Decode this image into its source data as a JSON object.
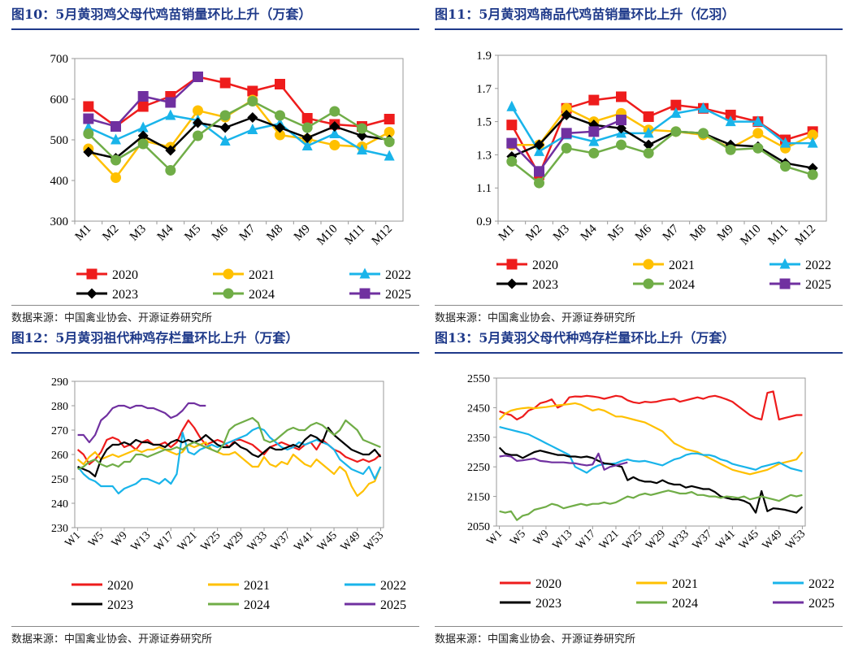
{
  "chart_data": [
    {
      "id": "fig10",
      "type": "line",
      "title": "图10：5月黄羽鸡父母代鸡苗销量环比上升（万套）",
      "source": "数据来源：中国禽业协会、开源证券研究所",
      "categories": [
        "M1",
        "M2",
        "M3",
        "M4",
        "M5",
        "M6",
        "M7",
        "M8",
        "M9",
        "M10",
        "M11",
        "M12"
      ],
      "ylim": [
        300,
        700
      ],
      "yticks": [
        300,
        400,
        500,
        600,
        700
      ],
      "series": [
        {
          "name": "2020",
          "color": "#ee1c1c",
          "marker": "square",
          "values": [
            582,
            533,
            582,
            607,
            655,
            640,
            620,
            637,
            553,
            538,
            533,
            551
          ]
        },
        {
          "name": "2021",
          "color": "#ffc000",
          "marker": "circle",
          "values": [
            478,
            407,
            498,
            482,
            572,
            556,
            598,
            512,
            502,
            487,
            483,
            519
          ]
        },
        {
          "name": "2022",
          "color": "#19b4ea",
          "marker": "triangle",
          "values": [
            530,
            500,
            530,
            560,
            548,
            497,
            525,
            540,
            485,
            515,
            475,
            460
          ]
        },
        {
          "name": "2023",
          "color": "#000000",
          "marker": "diamond",
          "values": [
            470,
            455,
            510,
            474,
            542,
            530,
            555,
            530,
            505,
            533,
            510,
            500
          ]
        },
        {
          "name": "2024",
          "color": "#70ad47",
          "marker": "circle",
          "values": [
            515,
            450,
            490,
            425,
            510,
            560,
            595,
            560,
            530,
            570,
            528,
            495
          ]
        },
        {
          "name": "2025",
          "color": "#7030a0",
          "marker": "square",
          "values": [
            552,
            533,
            607,
            592,
            655,
            null,
            null,
            null,
            null,
            null,
            null,
            null
          ]
        }
      ]
    },
    {
      "id": "fig11",
      "type": "line",
      "title": "图11：5月黄羽鸡商品代鸡苗销量环比上升（亿羽）",
      "source": "数据来源：中国禽业协会、开源证券研究所",
      "categories": [
        "M1",
        "M2",
        "M3",
        "M4",
        "M5",
        "M6",
        "M7",
        "M8",
        "M9",
        "M10",
        "M11",
        "M12"
      ],
      "ylim": [
        0.9,
        1.9
      ],
      "yticks": [
        0.9,
        1.1,
        1.3,
        1.5,
        1.7,
        1.9
      ],
      "series": [
        {
          "name": "2020",
          "color": "#ee1c1c",
          "marker": "square",
          "values": [
            1.48,
            1.18,
            1.58,
            1.63,
            1.65,
            1.53,
            1.6,
            1.58,
            1.54,
            1.5,
            1.39,
            1.44
          ]
        },
        {
          "name": "2021",
          "color": "#ffc000",
          "marker": "circle",
          "values": [
            1.36,
            1.36,
            1.58,
            1.5,
            1.55,
            1.45,
            1.44,
            1.42,
            1.34,
            1.43,
            1.34,
            1.42
          ]
        },
        {
          "name": "2022",
          "color": "#19b4ea",
          "marker": "triangle",
          "values": [
            1.59,
            1.32,
            1.42,
            1.38,
            1.43,
            1.43,
            1.55,
            1.58,
            1.5,
            1.5,
            1.37,
            1.37
          ]
        },
        {
          "name": "2023",
          "color": "#000000",
          "marker": "diamond",
          "values": [
            1.29,
            1.36,
            1.54,
            1.48,
            1.46,
            1.36,
            1.44,
            1.43,
            1.36,
            1.35,
            1.25,
            1.22
          ]
        },
        {
          "name": "2024",
          "color": "#70ad47",
          "marker": "circle",
          "values": [
            1.26,
            1.13,
            1.34,
            1.31,
            1.36,
            1.31,
            1.44,
            1.43,
            1.33,
            1.34,
            1.23,
            1.18
          ]
        },
        {
          "name": "2025",
          "color": "#7030a0",
          "marker": "square",
          "values": [
            1.37,
            1.2,
            1.43,
            1.44,
            1.51,
            null,
            null,
            null,
            null,
            null,
            null,
            null
          ]
        }
      ]
    },
    {
      "id": "fig12",
      "type": "line",
      "title": "图12：5月黄羽祖代种鸡存栏量环比上升（万套）",
      "source": "数据来源：中国禽业协会、开源证券研究所",
      "x_count": 53,
      "tick_labels": [
        "W1",
        "W5",
        "W9",
        "W13",
        "W17",
        "W21",
        "W25",
        "W29",
        "W33",
        "W37",
        "W41",
        "W45",
        "W49",
        "W53"
      ],
      "ylim": [
        230,
        290
      ],
      "yticks": [
        230,
        240,
        250,
        260,
        270,
        280,
        290
      ],
      "series": [
        {
          "name": "2020",
          "color": "#ee1c1c",
          "values": [
            262,
            260,
            256,
            258,
            261,
            266,
            267,
            266,
            263,
            264,
            262,
            265,
            266,
            264,
            264,
            265,
            263,
            265,
            270,
            274,
            271,
            267,
            264,
            265,
            266,
            265,
            263,
            266,
            266,
            265,
            264,
            262,
            260,
            263,
            264,
            265,
            264,
            263,
            262,
            264,
            265,
            262,
            266,
            264,
            262,
            261,
            259,
            258,
            257,
            258,
            257,
            258,
            260
          ]
        },
        {
          "name": "2021",
          "color": "#ffc000",
          "values": [
            258,
            256,
            259,
            261,
            258,
            259,
            260,
            259,
            260,
            261,
            262,
            261,
            262,
            262,
            263,
            262,
            261,
            260,
            261,
            264,
            263,
            264,
            265,
            262,
            261,
            260,
            260,
            261,
            259,
            257,
            255,
            255,
            259,
            256,
            255,
            257,
            256,
            260,
            258,
            256,
            255,
            258,
            256,
            254,
            252,
            255,
            253,
            247,
            243,
            245,
            248,
            249,
            255
          ]
        },
        {
          "name": "2022",
          "color": "#19b4ea",
          "values": [
            255,
            252,
            250,
            249,
            247,
            247,
            247,
            244,
            246,
            247,
            248,
            250,
            250,
            249,
            248,
            250,
            248,
            252,
            269,
            261,
            260,
            262,
            263,
            264,
            263,
            264,
            265,
            266,
            267,
            268,
            270,
            271,
            270,
            267,
            265,
            263,
            262,
            263,
            265,
            264,
            265,
            266,
            265,
            264,
            262,
            258,
            256,
            254,
            253,
            252,
            255,
            250,
            255
          ]
        },
        {
          "name": "2023",
          "color": "#000000",
          "values": [
            255,
            254,
            253,
            251,
            258,
            262,
            264,
            264,
            265,
            264,
            266,
            265,
            265,
            264,
            264,
            263,
            265,
            266,
            265,
            266,
            265,
            266,
            268,
            266,
            264,
            263,
            263,
            265,
            263,
            262,
            260,
            259,
            261,
            263,
            262,
            262,
            263,
            264,
            263,
            266,
            268,
            267,
            265,
            271,
            268,
            266,
            264,
            262,
            261,
            260,
            260,
            262,
            259
          ]
        },
        {
          "name": "2024",
          "color": "#70ad47",
          "values": [
            254,
            255,
            257,
            258,
            256,
            255,
            256,
            255,
            257,
            257,
            260,
            260,
            259,
            260,
            261,
            262,
            262,
            263,
            262,
            264,
            265,
            264,
            263,
            262,
            261,
            264,
            270,
            272,
            273,
            274,
            275,
            273,
            266,
            265,
            266,
            268,
            270,
            271,
            270,
            270,
            272,
            273,
            272,
            270,
            268,
            270,
            274,
            272,
            270,
            266,
            265,
            264,
            263
          ]
        },
        {
          "name": "2025",
          "color": "#7030a0",
          "values": [
            268,
            268,
            265,
            268,
            274,
            276,
            279,
            280,
            280,
            279,
            280,
            280,
            279,
            279,
            278,
            277,
            275,
            276,
            278,
            281,
            281,
            280,
            280,
            null,
            null,
            null,
            null,
            null,
            null,
            null,
            null,
            null,
            null,
            null,
            null,
            null,
            null,
            null,
            null,
            null,
            null,
            null,
            null,
            null,
            null,
            null,
            null,
            null,
            null,
            null,
            null,
            null,
            null
          ]
        }
      ]
    },
    {
      "id": "fig13",
      "type": "line",
      "title": "图13：5月黄羽父母代种鸡存栏量环比上升（万套）",
      "source": "数据来源：中国禽业协会、开源证券研究所",
      "x_count": 53,
      "tick_labels": [
        "W1",
        "W5",
        "W9",
        "W13",
        "W17",
        "W21",
        "W25",
        "W29",
        "W33",
        "W37",
        "W41",
        "W45",
        "W49",
        "W53"
      ],
      "ylim": [
        2050,
        2550
      ],
      "yticks": [
        2050,
        2150,
        2250,
        2350,
        2450,
        2550
      ],
      "series": [
        {
          "name": "2020",
          "color": "#ee1c1c",
          "values": [
            2438,
            2430,
            2425,
            2410,
            2420,
            2440,
            2448,
            2465,
            2470,
            2478,
            2450,
            2460,
            2485,
            2488,
            2487,
            2490,
            2488,
            2485,
            2480,
            2485,
            2490,
            2487,
            2475,
            2468,
            2465,
            2470,
            2468,
            2470,
            2475,
            2478,
            2480,
            2470,
            2475,
            2480,
            2485,
            2480,
            2487,
            2490,
            2485,
            2478,
            2470,
            2455,
            2440,
            2425,
            2415,
            2410,
            2500,
            2505,
            2410,
            2415,
            2420,
            2425,
            2425
          ]
        },
        {
          "name": "2021",
          "color": "#ffc000",
          "values": [
            2410,
            2430,
            2440,
            2445,
            2448,
            2450,
            2448,
            2450,
            2452,
            2455,
            2458,
            2460,
            2462,
            2465,
            2460,
            2450,
            2440,
            2445,
            2440,
            2430,
            2420,
            2420,
            2415,
            2410,
            2405,
            2400,
            2390,
            2380,
            2370,
            2350,
            2330,
            2320,
            2310,
            2305,
            2300,
            2290,
            2280,
            2270,
            2260,
            2250,
            2240,
            2235,
            2230,
            2225,
            2230,
            2235,
            2240,
            2250,
            2260,
            2265,
            2270,
            2275,
            2300
          ]
        },
        {
          "name": "2022",
          "color": "#19b4ea",
          "values": [
            2385,
            2380,
            2375,
            2370,
            2365,
            2360,
            2350,
            2340,
            2330,
            2320,
            2310,
            2300,
            2290,
            2250,
            2240,
            2230,
            2245,
            2255,
            2260,
            2260,
            2262,
            2270,
            2275,
            2270,
            2268,
            2270,
            2265,
            2260,
            2255,
            2265,
            2275,
            2280,
            2290,
            2295,
            2295,
            2290,
            2290,
            2285,
            2275,
            2270,
            2260,
            2255,
            2250,
            2245,
            2240,
            2250,
            2255,
            2260,
            2265,
            2255,
            2245,
            2240,
            2235
          ]
        },
        {
          "name": "2023",
          "color": "#000000",
          "values": [
            2315,
            2295,
            2290,
            2290,
            2280,
            2290,
            2300,
            2305,
            2300,
            2295,
            2290,
            2290,
            2285,
            2285,
            2282,
            2285,
            2280,
            2270,
            2262,
            2260,
            2255,
            2250,
            2205,
            2215,
            2205,
            2200,
            2200,
            2195,
            2205,
            2195,
            2190,
            2190,
            2180,
            2185,
            2180,
            2175,
            2175,
            2165,
            2150,
            2145,
            2140,
            2140,
            2135,
            2125,
            2095,
            2168,
            2100,
            2110,
            2108,
            2105,
            2100,
            2095,
            2115
          ]
        },
        {
          "name": "2024",
          "color": "#70ad47",
          "values": [
            2100,
            2095,
            2100,
            2070,
            2085,
            2090,
            2105,
            2110,
            2115,
            2125,
            2120,
            2110,
            2115,
            2120,
            2125,
            2120,
            2125,
            2125,
            2130,
            2125,
            2130,
            2140,
            2150,
            2145,
            2155,
            2160,
            2155,
            2160,
            2165,
            2170,
            2165,
            2160,
            2160,
            2165,
            2155,
            2155,
            2150,
            2150,
            2145,
            2150,
            2148,
            2145,
            2150,
            2140,
            2145,
            2150,
            2145,
            2140,
            2135,
            2145,
            2155,
            2150,
            2155
          ]
        },
        {
          "name": "2025",
          "color": "#7030a0",
          "values": [
            2285,
            2288,
            2285,
            2270,
            2272,
            2275,
            2278,
            2270,
            2268,
            2265,
            2265,
            2265,
            2263,
            2262,
            2258,
            2255,
            2258,
            2295,
            2240,
            2250,
            2255,
            2260,
            2265,
            null,
            null,
            null,
            null,
            null,
            null,
            null,
            null,
            null,
            null,
            null,
            null,
            null,
            null,
            null,
            null,
            null,
            null,
            null,
            null,
            null,
            null,
            null,
            null,
            null,
            null,
            null,
            null,
            null,
            null
          ]
        }
      ]
    }
  ]
}
